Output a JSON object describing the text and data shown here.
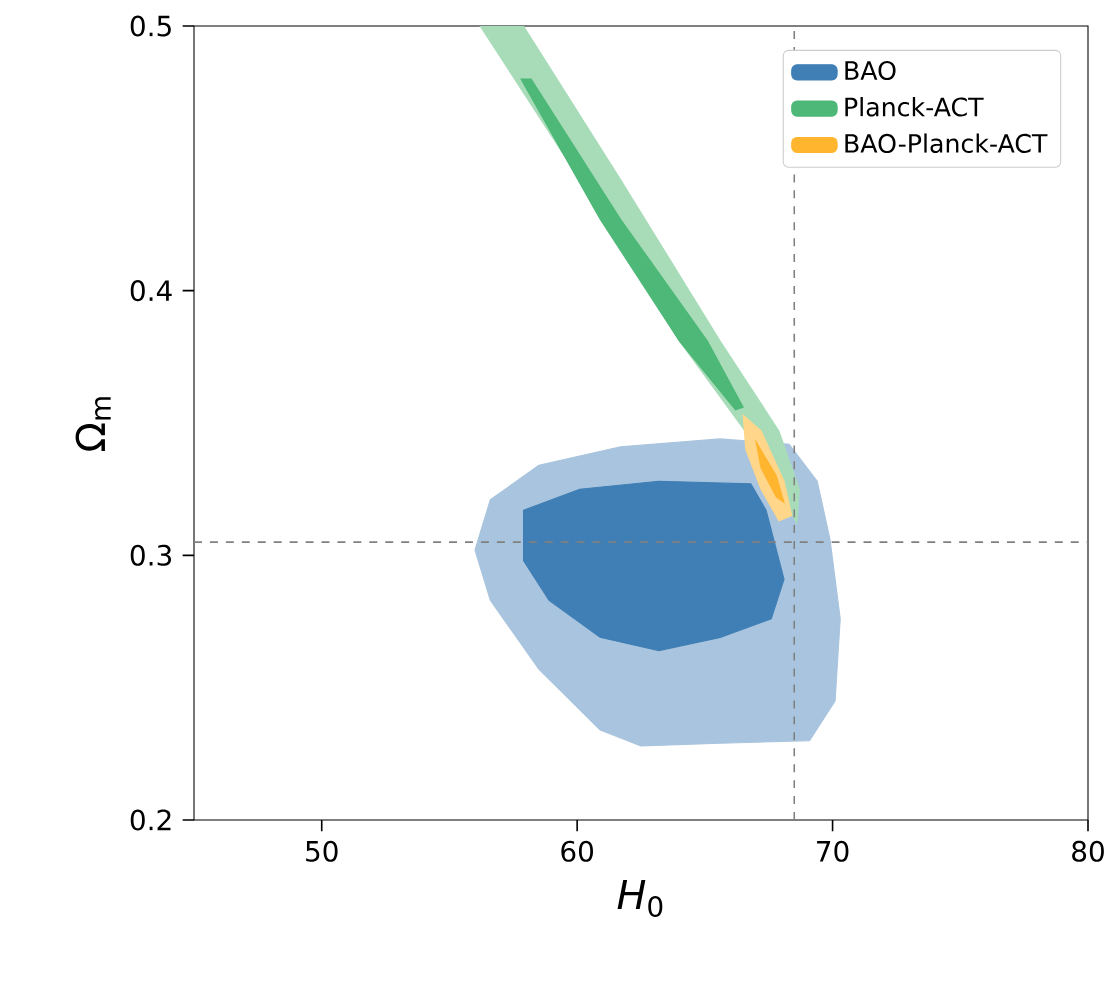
{
  "chart_data": {
    "type": "area",
    "xlabel": "*H*$_{0}$",
    "ylabel": "Ω$_{m}$",
    "xlim": [
      45,
      80
    ],
    "ylim": [
      0.2,
      0.5
    ],
    "xticks": [
      50,
      60,
      70,
      80
    ],
    "yticks": [
      0.2,
      0.3,
      0.4,
      0.5
    ],
    "legend": "top right",
    "grid": false,
    "series": [
      {
        "color": "#a9c4de",
        "x": [
          56.6,
          58.5,
          61.7,
          65.6,
          68.3,
          69.4,
          69.9,
          70.3,
          70.1,
          69.1,
          65.6,
          62.5,
          60.9,
          58.5,
          56.6,
          56.0
        ],
        "values": [
          0.321,
          0.334,
          0.341,
          0.344,
          0.342,
          0.328,
          0.306,
          0.276,
          0.245,
          0.23,
          0.229,
          0.228,
          0.234,
          0.257,
          0.283,
          0.302
        ]
      },
      {
        "name": "BAO",
        "color": "#3f7fb5",
        "x": [
          57.9,
          60.1,
          63.2,
          66.8,
          67.4,
          68.1,
          67.6,
          65.6,
          63.2,
          60.9,
          58.9,
          57.9
        ],
        "values": [
          0.317,
          0.325,
          0.328,
          0.327,
          0.317,
          0.291,
          0.276,
          0.269,
          0.264,
          0.269,
          0.283,
          0.298
        ]
      },
      {
        "color": "#a8dcb9",
        "x": [
          56.2,
          60.1,
          64.0,
          66.8,
          68.1,
          68.6,
          68.7,
          67.9,
          65.6,
          61.7,
          57.9
        ],
        "values": [
          0.5,
          0.442,
          0.381,
          0.344,
          0.321,
          0.312,
          0.325,
          0.347,
          0.381,
          0.442,
          0.5
        ]
      },
      {
        "name": "Planck-ACT",
        "color": "#4db877",
        "x": [
          57.8,
          60.9,
          64.0,
          66.2,
          66.5,
          65.1,
          61.7,
          58.2
        ],
        "values": [
          0.48,
          0.427,
          0.381,
          0.355,
          0.356,
          0.381,
          0.427,
          0.48
        ]
      },
      {
        "color": "#ffd68a",
        "x": [
          66.5,
          67.2,
          68.1,
          68.4,
          67.9,
          67.2,
          66.6
        ],
        "values": [
          0.353,
          0.347,
          0.328,
          0.315,
          0.313,
          0.325,
          0.34
        ]
      },
      {
        "name": "BAO-Planck-ACT",
        "color": "#ffb52e",
        "x": [
          67.0,
          67.8,
          68.1,
          67.8,
          67.2
        ],
        "values": [
          0.343,
          0.33,
          0.32,
          0.322,
          0.333
        ]
      }
    ],
    "ref_lines": [
      {
        "axis": "x",
        "value": 68.5,
        "color": "#808080",
        "line_style": "dashed"
      },
      {
        "axis": "y",
        "value": 0.305,
        "color": "#808080",
        "line_style": "dashed"
      }
    ]
  }
}
